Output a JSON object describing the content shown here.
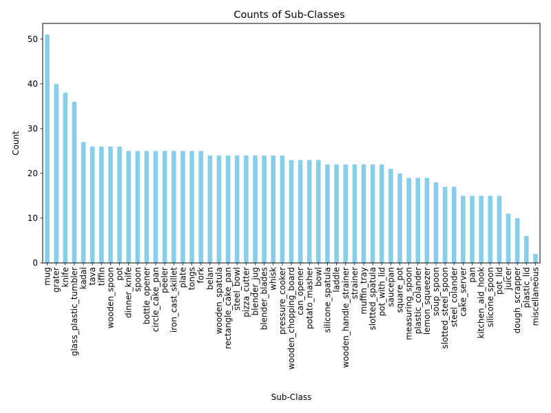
{
  "chart_data": {
    "type": "bar",
    "title": "Counts of Sub-Classes",
    "xlabel": "Sub-Class",
    "ylabel": "Count",
    "ylim": [
      0,
      53.5
    ],
    "yticks": [
      0,
      10,
      20,
      30,
      40,
      50
    ],
    "bar_color": "#87ceeb",
    "grid": false,
    "legend": "none",
    "categories": [
      "mug",
      "grater",
      "knife",
      "glass_plastic_tumbler",
      "kadai",
      "tava",
      "tiffin",
      "wooden_spoon",
      "pot",
      "dinner_knife",
      "spoon",
      "bottle_opener",
      "circle_cake_pan",
      "peeler",
      "iron_cast_skillet",
      "plate",
      "tongs",
      "fork",
      "belan",
      "wooden_spatula",
      "rectangle_cake_pan",
      "steel_bowl",
      "pizza_cutter",
      "blender_jug",
      "blender_blades",
      "whisk",
      "pressure_cooker",
      "wooden_chopping_board",
      "can_opener",
      "potato_masher",
      "bowl",
      "silicone_spatula",
      "laddle",
      "wooden_handle_strainer",
      "strainer",
      "muffin_tray",
      "slotted_spatula",
      "pot_with_lid",
      "saucepan",
      "square_pot",
      "measuring_spoon",
      "plastic_colander",
      "lemon_squeezer",
      "soup_spoon",
      "slotted_steel_spoon",
      "steel_colander",
      "cake_server",
      "pan",
      "kitchen_aid_hook",
      "silicone_spoon",
      "pot_lid",
      "juicer",
      "dough_scrapper",
      "plastic_lid",
      "miscellaneous"
    ],
    "values": [
      51,
      40,
      38,
      36,
      27,
      26,
      26,
      26,
      26,
      25,
      25,
      25,
      25,
      25,
      25,
      25,
      25,
      25,
      24,
      24,
      24,
      24,
      24,
      24,
      24,
      24,
      24,
      23,
      23,
      23,
      23,
      22,
      22,
      22,
      22,
      22,
      22,
      22,
      21,
      20,
      19,
      19,
      19,
      18,
      17,
      17,
      15,
      15,
      15,
      15,
      15,
      11,
      10,
      6,
      2
    ]
  }
}
